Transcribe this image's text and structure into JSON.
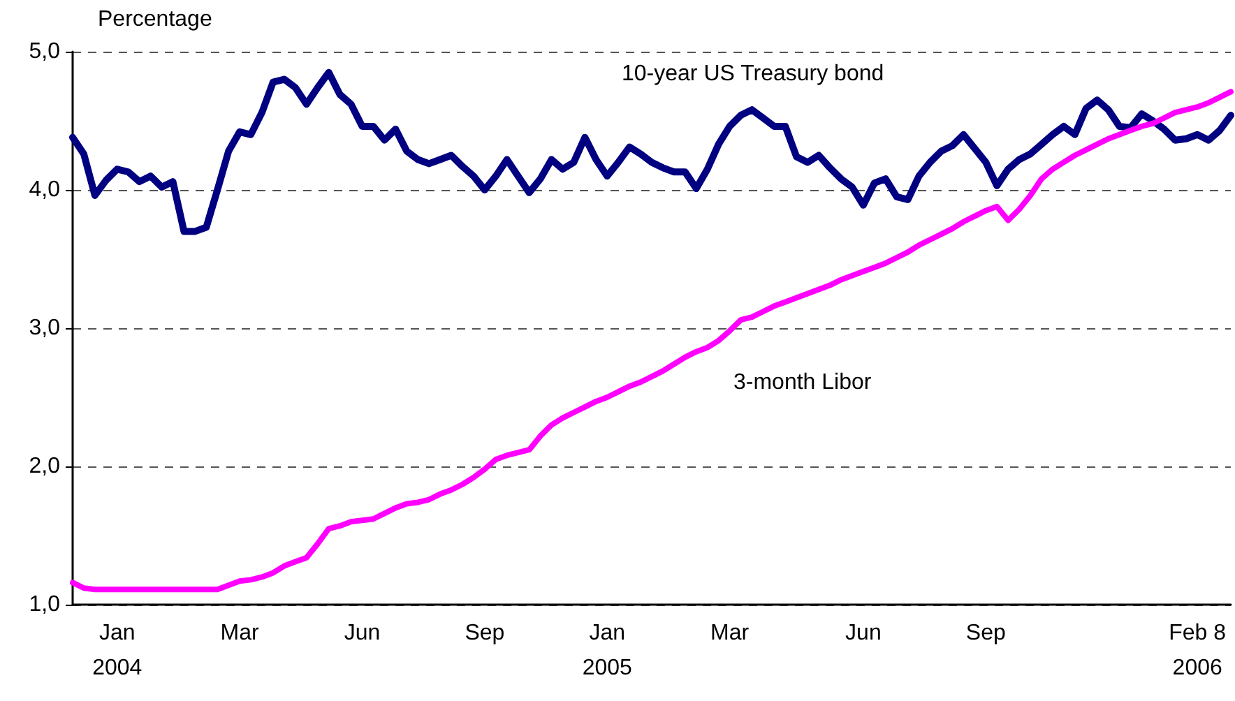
{
  "chart_data": {
    "type": "line",
    "ylabel": "Percentage",
    "categories": [
      null,
      null,
      null,
      null,
      "Jan\n2004",
      null,
      null,
      null,
      null,
      null,
      null,
      null,
      null,
      null,
      null,
      "Mar",
      null,
      null,
      null,
      null,
      null,
      null,
      null,
      null,
      null,
      null,
      "Jun",
      null,
      null,
      null,
      null,
      null,
      null,
      null,
      null,
      null,
      null,
      "Sep",
      null,
      null,
      null,
      null,
      null,
      null,
      null,
      null,
      null,
      null,
      "Jan\n2005",
      null,
      null,
      null,
      null,
      null,
      null,
      null,
      null,
      null,
      null,
      "Mar",
      null,
      null,
      null,
      null,
      null,
      null,
      null,
      null,
      null,
      null,
      null,
      "Jun",
      null,
      null,
      null,
      null,
      null,
      null,
      null,
      null,
      null,
      null,
      "Sep",
      null,
      null,
      null,
      null,
      null,
      null,
      null,
      null,
      null,
      null,
      null,
      null,
      null,
      null,
      null,
      null,
      null,
      null,
      "Feb 8\n2006",
      null,
      null,
      null
    ],
    "series": [
      {
        "name": "10-year US Treasury bond",
        "color": "#000080",
        "values": [
          4.38,
          4.26,
          3.96,
          4.07,
          4.15,
          4.13,
          4.06,
          4.1,
          4.02,
          4.06,
          3.7,
          3.7,
          3.73,
          4.0,
          4.28,
          4.42,
          4.4,
          4.56,
          4.78,
          4.8,
          4.74,
          4.62,
          4.74,
          4.85,
          4.69,
          4.62,
          4.46,
          4.46,
          4.36,
          4.44,
          4.28,
          4.22,
          4.19,
          4.22,
          4.25,
          4.17,
          4.1,
          4.0,
          4.1,
          4.22,
          4.1,
          3.98,
          4.08,
          4.22,
          4.15,
          4.2,
          4.38,
          4.22,
          4.1,
          4.2,
          4.31,
          4.26,
          4.2,
          4.16,
          4.13,
          4.13,
          4.01,
          4.15,
          4.33,
          4.46,
          4.54,
          4.58,
          4.52,
          4.46,
          4.46,
          4.24,
          4.2,
          4.25,
          4.16,
          4.08,
          4.02,
          3.89,
          4.05,
          4.08,
          3.95,
          3.93,
          4.1,
          4.2,
          4.28,
          4.32,
          4.4,
          4.3,
          4.2,
          4.03,
          4.15,
          4.22,
          4.26,
          4.33,
          4.4,
          4.46,
          4.4,
          4.59,
          4.65,
          4.58,
          4.46,
          4.45,
          4.55,
          4.5,
          4.44,
          4.36,
          4.37,
          4.4,
          4.36,
          4.43,
          4.54
        ]
      },
      {
        "name": "3-month Libor",
        "color": "#ff00ff",
        "values": [
          1.16,
          1.12,
          1.11,
          1.11,
          1.11,
          1.11,
          1.11,
          1.11,
          1.11,
          1.11,
          1.11,
          1.11,
          1.11,
          1.11,
          1.14,
          1.17,
          1.18,
          1.2,
          1.23,
          1.28,
          1.31,
          1.34,
          1.44,
          1.55,
          1.57,
          1.6,
          1.61,
          1.62,
          1.66,
          1.7,
          1.73,
          1.74,
          1.76,
          1.8,
          1.83,
          1.87,
          1.92,
          1.98,
          2.05,
          2.08,
          2.1,
          2.12,
          2.22,
          2.3,
          2.35,
          2.39,
          2.43,
          2.47,
          2.5,
          2.54,
          2.58,
          2.61,
          2.65,
          2.69,
          2.74,
          2.79,
          2.83,
          2.86,
          2.91,
          2.98,
          3.06,
          3.08,
          3.12,
          3.16,
          3.19,
          3.22,
          3.25,
          3.28,
          3.31,
          3.35,
          3.38,
          3.41,
          3.44,
          3.47,
          3.51,
          3.55,
          3.6,
          3.64,
          3.68,
          3.72,
          3.77,
          3.81,
          3.85,
          3.88,
          3.78,
          3.86,
          3.96,
          4.08,
          4.15,
          4.2,
          4.25,
          4.29,
          4.33,
          4.37,
          4.4,
          4.43,
          4.46,
          4.48,
          4.52,
          4.56,
          4.58,
          4.6,
          4.63,
          4.67,
          4.71
        ]
      }
    ],
    "ylim": [
      1,
      5
    ],
    "yticks": [
      {
        "value": 1,
        "label": "1,0"
      },
      {
        "value": 2,
        "label": "2,0"
      },
      {
        "value": 3,
        "label": "3,0"
      },
      {
        "value": 4,
        "label": "4,0"
      },
      {
        "value": 5,
        "label": "5,0"
      }
    ],
    "grid": "y",
    "legend": false,
    "marker": "none",
    "line_style": "solid"
  }
}
